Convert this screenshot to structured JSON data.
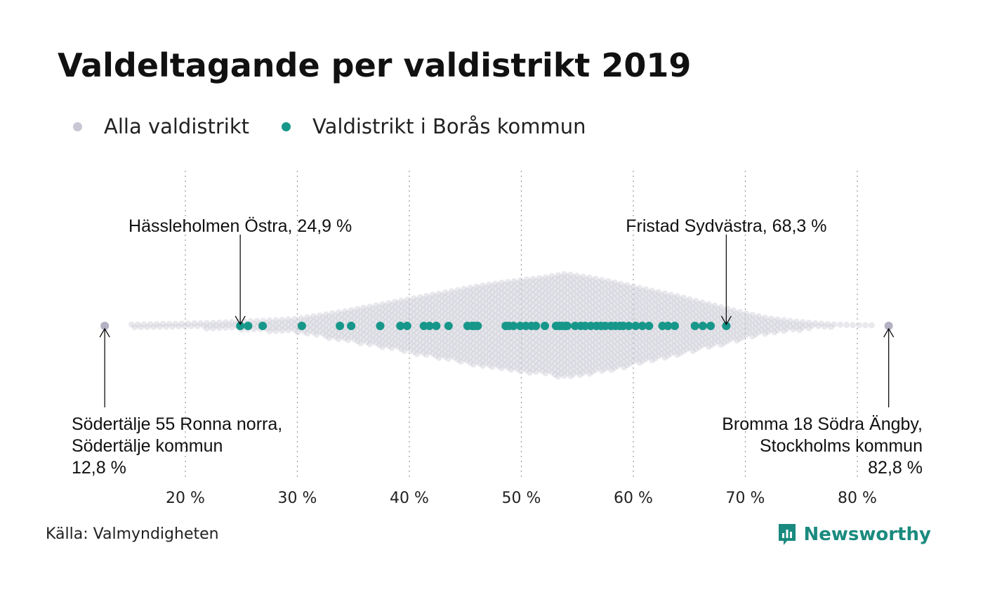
{
  "title": "Valdeltagande per valdistrikt 2019",
  "legend": [
    {
      "label": "Alla valdistrikt",
      "color": "#c9c7d4"
    },
    {
      "label": "Valdistrikt i Borås kommun",
      "color": "#16978a"
    }
  ],
  "source": "Källa: Valmyndigheten",
  "brand": "Newsworthy",
  "chart_data": {
    "type": "scatter",
    "title": "Valdeltagande per valdistrikt 2019",
    "xlim": [
      12,
      84
    ],
    "x_ticks": [
      {
        "value": 20,
        "label": "20 %"
      },
      {
        "value": 30,
        "label": "30 %"
      },
      {
        "value": 40,
        "label": "40 %"
      },
      {
        "value": 50,
        "label": "50 %"
      },
      {
        "value": 60,
        "label": "60 %"
      },
      {
        "value": 70,
        "label": "70 %"
      },
      {
        "value": 80,
        "label": "80 %"
      }
    ],
    "grid": true,
    "legend_placement": "top-left",
    "series": [
      {
        "name": "Alla valdistrikt",
        "color": "#c9c7d4",
        "extremes": [
          12.8,
          82.8
        ],
        "density_profile": [
          [
            16,
            2
          ],
          [
            19,
            3
          ],
          [
            22,
            4
          ],
          [
            25,
            6
          ],
          [
            28,
            8
          ],
          [
            30,
            10
          ],
          [
            32,
            15
          ],
          [
            34,
            20
          ],
          [
            36,
            26
          ],
          [
            38,
            32
          ],
          [
            40,
            38
          ],
          [
            42,
            44
          ],
          [
            44,
            50
          ],
          [
            46,
            56
          ],
          [
            48,
            61
          ],
          [
            50,
            65
          ],
          [
            52,
            69
          ],
          [
            54,
            74
          ],
          [
            56,
            69
          ],
          [
            58,
            63
          ],
          [
            60,
            56
          ],
          [
            62,
            49
          ],
          [
            64,
            42
          ],
          [
            66,
            34
          ],
          [
            68,
            26
          ],
          [
            70,
            18
          ],
          [
            72,
            11
          ],
          [
            74,
            7
          ],
          [
            76,
            4
          ],
          [
            78,
            2
          ],
          [
            80,
            1
          ],
          [
            82,
            1
          ]
        ]
      },
      {
        "name": "Valdistrikt i Borås kommun",
        "color": "#16978a",
        "values": [
          24.9,
          25.6,
          26.9,
          30.4,
          33.8,
          34.8,
          37.4,
          39.2,
          39.8,
          41.3,
          41.8,
          42.4,
          43.5,
          45.2,
          45.6,
          45.8,
          46.1,
          48.6,
          48.9,
          49.3,
          49.9,
          50.4,
          50.9,
          51.3,
          52.1,
          53.1,
          53.4,
          53.6,
          53.9,
          54.1,
          54.8,
          55.3,
          55.7,
          56.2,
          56.7,
          57.1,
          57.5,
          58.0,
          58.4,
          58.8,
          59.1,
          59.6,
          60.2,
          60.8,
          61.4,
          62.6,
          63.1,
          63.7,
          65.5,
          66.2,
          66.9,
          68.3
        ]
      }
    ],
    "annotations": [
      {
        "text": "Hässleholmen Östra, 24,9 %",
        "value": 24.9,
        "position": "above"
      },
      {
        "text": "Fristad Sydvästra, 68,3 %",
        "value": 68.3,
        "position": "above"
      },
      {
        "lines": [
          "Södertälje 55 Ronna norra,",
          "Södertälje kommun",
          "12,8 %"
        ],
        "value": 12.8,
        "position": "below-left"
      },
      {
        "lines": [
          "Bromma 18 Södra Ängby,",
          "Stockholms kommun",
          "82,8 %"
        ],
        "value": 82.8,
        "position": "below-right"
      }
    ]
  }
}
